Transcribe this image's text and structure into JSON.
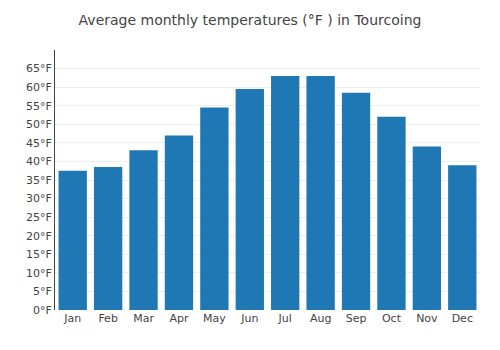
{
  "chart_data": {
    "type": "bar",
    "title": "Average monthly temperatures (°F ) in Tourcoing",
    "categories": [
      "Jan",
      "Feb",
      "Mar",
      "Apr",
      "May",
      "Jun",
      "Jul",
      "Aug",
      "Sep",
      "Oct",
      "Nov",
      "Dec"
    ],
    "values": [
      37.5,
      38.5,
      43.0,
      47.0,
      54.5,
      59.5,
      63.0,
      63.0,
      58.5,
      52.0,
      44.0,
      39.0
    ],
    "ylim": [
      0,
      70
    ],
    "yticks": [
      {
        "value": 0,
        "label": "0°F"
      },
      {
        "value": 5,
        "label": "5°F"
      },
      {
        "value": 10,
        "label": "10°F"
      },
      {
        "value": 15,
        "label": "15°F"
      },
      {
        "value": 20,
        "label": "20°F"
      },
      {
        "value": 25,
        "label": "25°F"
      },
      {
        "value": 30,
        "label": "30°F"
      },
      {
        "value": 35,
        "label": "35°F"
      },
      {
        "value": 40,
        "label": "40°F"
      },
      {
        "value": 45,
        "label": "45°F"
      },
      {
        "value": 50,
        "label": "50°F"
      },
      {
        "value": 55,
        "label": "55°F"
      },
      {
        "value": 60,
        "label": "60°F"
      },
      {
        "value": 65,
        "label": "65°F"
      }
    ],
    "grid": true
  }
}
